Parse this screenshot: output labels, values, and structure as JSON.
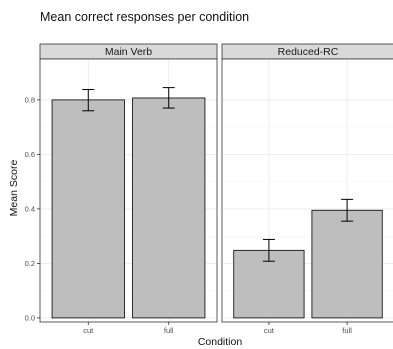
{
  "chart_data": {
    "type": "bar",
    "title": "Mean correct responses per condition",
    "xlabel": "Condition",
    "ylabel": "Mean Score",
    "ylim": [
      -0.015,
      0.95
    ],
    "yticks": [
      0.0,
      0.2,
      0.4,
      0.6,
      0.8
    ],
    "ytick_labels": [
      "0.0",
      "0.2",
      "0.4",
      "0.6",
      "0.8"
    ],
    "categories": [
      "cut",
      "full"
    ],
    "grid": true,
    "legend": "none",
    "error_bars": true,
    "facets": [
      {
        "label": "Main Verb",
        "values": [
          0.8,
          0.807
        ],
        "err_low": [
          0.76,
          0.77
        ],
        "err_high": [
          0.838,
          0.845
        ]
      },
      {
        "label": "Reduced-RC",
        "values": [
          0.248,
          0.395
        ],
        "err_low": [
          0.208,
          0.355
        ],
        "err_high": [
          0.288,
          0.435
        ]
      }
    ]
  },
  "colors": {
    "bar_fill": "#bebebe",
    "bar_stroke": "#000000",
    "strip_fill": "#d9d9d9",
    "panel_border": "#333333",
    "grid_major": "#ebebeb",
    "grid_minor": "#f5f5f5",
    "error_bar": "#000000"
  }
}
